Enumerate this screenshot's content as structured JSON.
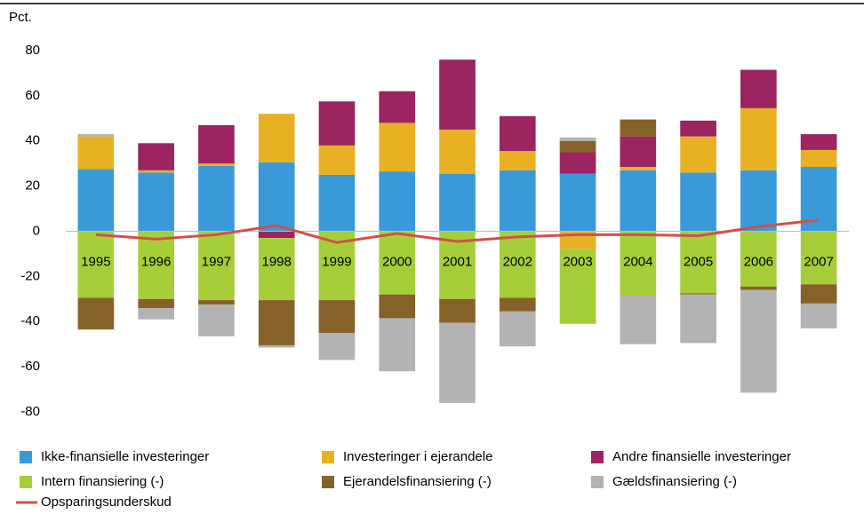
{
  "chart_data": {
    "type": "bar",
    "stacked": true,
    "y_label": "Pct.",
    "categories": [
      "1995",
      "1996",
      "1997",
      "1998",
      "1999",
      "2000",
      "2001",
      "2002",
      "2003",
      "2004",
      "2005",
      "2006",
      "2007"
    ],
    "series": [
      {
        "name": "Ikke-finansielle investeringer",
        "color": "#3a9ad9",
        "values": [
          27.5,
          26,
          29,
          30.5,
          25,
          26.5,
          25.5,
          27,
          25.5,
          27,
          26,
          27,
          28.5
        ]
      },
      {
        "name": "Investeringer i ejerandele",
        "color": "#e8b124",
        "values": [
          14.5,
          1,
          1,
          21.5,
          13,
          21.5,
          19.5,
          8.5,
          -8,
          1.5,
          16,
          27.5,
          7.5
        ]
      },
      {
        "name": "Andre finansielle investeringer",
        "color": "#9b2461",
        "values": [
          0,
          12,
          17,
          -3,
          19.5,
          14,
          31,
          15.5,
          9.5,
          13.5,
          7,
          17,
          7
        ]
      },
      {
        "name": "Intern finansiering (-)",
        "color": "#a6ce39",
        "values": [
          -29.5,
          -30,
          -30.5,
          -27.5,
          -30.5,
          -28,
          -30,
          -29.5,
          -33,
          -28.5,
          -27.5,
          -24.5,
          -23.5
        ]
      },
      {
        "name": "Ejerandelsfinansiering (-)",
        "color": "#86622a",
        "values": [
          -14,
          -4,
          -2,
          -20,
          -14.5,
          -10.5,
          -10.5,
          -6,
          5,
          7.5,
          -0.5,
          -1.5,
          -8.5
        ]
      },
      {
        "name": "Gældsfinansiering (-)",
        "color": "#b3b3b3",
        "values": [
          1,
          -5,
          -14,
          -1,
          -12,
          -23.5,
          -35.5,
          -15.5,
          1.5,
          -21.5,
          -21.5,
          -45.5,
          -11
        ]
      },
      {
        "name": "Opsparingsunderskud",
        "color": "#d0504c",
        "type": "line",
        "values": [
          -1.5,
          -3.5,
          -1.5,
          2.5,
          -5,
          -1,
          -4.5,
          -2.5,
          -1.5,
          -1.5,
          -2,
          2,
          5
        ]
      }
    ],
    "ylim": [
      -80,
      80
    ],
    "yticks": [
      80,
      60,
      40,
      20,
      0,
      -20,
      -40,
      -60,
      -80
    ],
    "grid": false
  }
}
